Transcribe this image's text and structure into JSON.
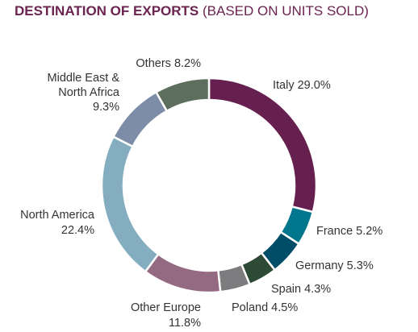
{
  "chart_data": {
    "type": "pie",
    "title": "DESTINATION OF EXPORTS",
    "subtitle": "(BASED ON UNITS SOLD)",
    "style": "donut",
    "slices": [
      {
        "name": "Italy",
        "value": 29.0,
        "label": "Italy 29.0%",
        "color": "#66204f"
      },
      {
        "name": "France",
        "value": 5.2,
        "label": "France 5.2%",
        "color": "#00768c"
      },
      {
        "name": "Germany",
        "value": 5.3,
        "label": "Germany 5.3%",
        "color": "#004d68"
      },
      {
        "name": "Spain",
        "value": 4.3,
        "label": "Spain 4.3%",
        "color": "#2d4a34"
      },
      {
        "name": "Poland",
        "value": 4.5,
        "label": "Poland 4.5%",
        "color": "#7c7c7e"
      },
      {
        "name": "Other Europe",
        "value": 11.8,
        "label": "Other Europe 11.8%",
        "color": "#946982"
      },
      {
        "name": "North America",
        "value": 22.4,
        "label": "North America 22.4%",
        "color": "#84adc0"
      },
      {
        "name": "Middle East & North Africa",
        "value": 9.3,
        "label": "Middle East & North Africa 9.3%",
        "color": "#7e8da7"
      },
      {
        "name": "Others",
        "value": 8.2,
        "label": "Others 8.2%",
        "color": "#5d6e5d"
      }
    ]
  }
}
